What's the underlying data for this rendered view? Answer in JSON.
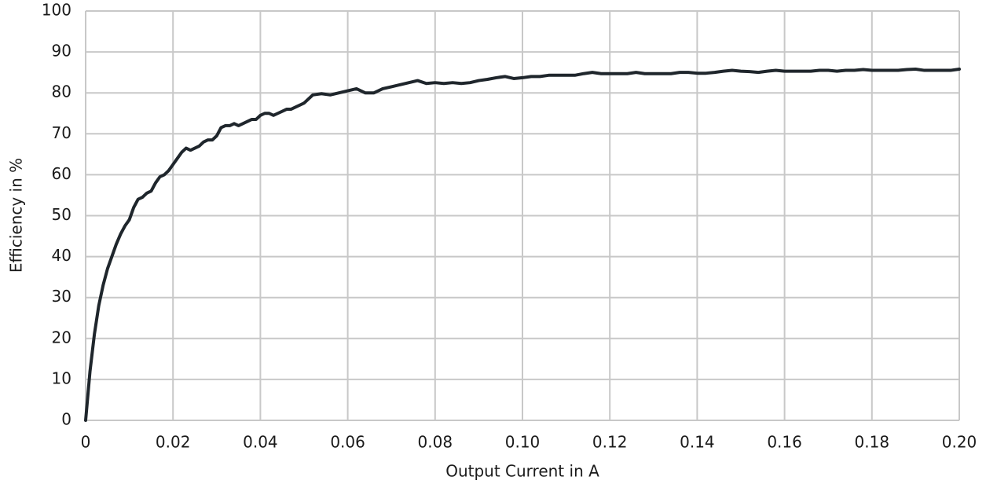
{
  "chart_data": {
    "type": "line",
    "x_label": "Output Current in A",
    "y_label": "Efficiency in %",
    "color": "#1f262c",
    "grid": true,
    "xlim": [
      0,
      0.2
    ],
    "ylim": [
      0,
      100
    ],
    "xticks": [
      0,
      0.02,
      0.04,
      0.06,
      0.08,
      {
        "value": 0.1,
        "label": "0.10"
      },
      0.12,
      0.14,
      0.16,
      0.18,
      {
        "value": 0.2,
        "label": "0.20"
      }
    ],
    "yticks": [
      0,
      10,
      20,
      30,
      40,
      50,
      60,
      70,
      80,
      90,
      100
    ],
    "x": [
      0,
      0.001,
      0.002,
      0.003,
      0.004,
      0.005,
      0.006,
      0.007,
      0.008,
      0.009,
      0.01,
      0.011,
      0.012,
      0.013,
      0.014,
      0.015,
      0.016,
      0.017,
      0.018,
      0.019,
      0.02,
      0.021,
      0.022,
      0.023,
      0.024,
      0.025,
      0.026,
      0.027,
      0.028,
      0.029,
      0.03,
      0.031,
      0.032,
      0.033,
      0.034,
      0.035,
      0.036,
      0.037,
      0.038,
      0.039,
      0.04,
      0.041,
      0.042,
      0.043,
      0.044,
      0.045,
      0.046,
      0.047,
      0.048,
      0.05,
      0.052,
      0.054,
      0.056,
      0.058,
      0.06,
      0.062,
      0.064,
      0.066,
      0.068,
      0.07,
      0.072,
      0.074,
      0.076,
      0.078,
      0.08,
      0.082,
      0.084,
      0.086,
      0.088,
      0.09,
      0.092,
      0.094,
      0.096,
      0.098,
      0.1,
      0.102,
      0.104,
      0.106,
      0.108,
      0.11,
      0.112,
      0.114,
      0.116,
      0.118,
      0.12,
      0.122,
      0.124,
      0.126,
      0.128,
      0.13,
      0.132,
      0.134,
      0.136,
      0.138,
      0.14,
      0.142,
      0.144,
      0.146,
      0.148,
      0.15,
      0.152,
      0.154,
      0.156,
      0.158,
      0.16,
      0.162,
      0.164,
      0.166,
      0.168,
      0.17,
      0.172,
      0.174,
      0.176,
      0.178,
      0.18,
      0.182,
      0.184,
      0.186,
      0.188,
      0.19,
      0.192,
      0.194,
      0.196,
      0.198,
      0.2
    ],
    "values": [
      0,
      12,
      21,
      28,
      33,
      37,
      40,
      43,
      45.5,
      47.5,
      49,
      52,
      54,
      54.5,
      55.5,
      56,
      58,
      59.5,
      60,
      61,
      62.5,
      64,
      65.5,
      66.5,
      66,
      66.5,
      67,
      68,
      68.5,
      68.5,
      69.5,
      71.5,
      72,
      72,
      72.5,
      72,
      72.5,
      73,
      73.5,
      73.5,
      74.5,
      75,
      75,
      74.5,
      75,
      75.5,
      76,
      76,
      76.5,
      77.5,
      79.5,
      79.8,
      79.5,
      80,
      80.5,
      81,
      80,
      80,
      81,
      81.5,
      82,
      82.5,
      83,
      82.3,
      82.5,
      82.3,
      82.5,
      82.3,
      82.5,
      83,
      83.3,
      83.7,
      84,
      83.5,
      83.7,
      84,
      84,
      84.3,
      84.3,
      84.3,
      84.3,
      84.7,
      85,
      84.7,
      84.7,
      84.7,
      84.7,
      85,
      84.7,
      84.7,
      84.7,
      84.7,
      85,
      85,
      84.8,
      84.8,
      85,
      85.3,
      85.5,
      85.3,
      85.2,
      85,
      85.3,
      85.5,
      85.3,
      85.3,
      85.3,
      85.3,
      85.5,
      85.5,
      85.3,
      85.5,
      85.5,
      85.7,
      85.5,
      85.5,
      85.5,
      85.5,
      85.7,
      85.8,
      85.5,
      85.5,
      85.5,
      85.5,
      85.8
    ]
  }
}
